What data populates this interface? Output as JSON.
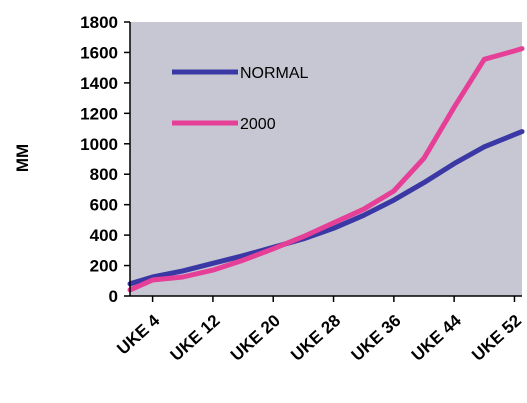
{
  "chart_data": {
    "type": "line",
    "title": "",
    "xlabel": "",
    "ylabel": "MM",
    "ylim": [
      0,
      1800
    ],
    "yticks": [
      0,
      200,
      400,
      600,
      800,
      1000,
      1200,
      1400,
      1600,
      1800
    ],
    "x_tick_labels": [
      "UKE 4",
      "UKE 12",
      "UKE 20",
      "UKE 28",
      "UKE 36",
      "UKE 44",
      "UKE 52"
    ],
    "x": [
      1,
      4,
      8,
      12,
      16,
      20,
      24,
      28,
      32,
      36,
      40,
      44,
      48,
      52,
      53
    ],
    "xlim": [
      1,
      53
    ],
    "grid": false,
    "legend_position": "upper-left inside plot",
    "plot_background": "#c7c7d3",
    "series": [
      {
        "name": "NORMAL",
        "color": "#3a38a4",
        "values": [
          80,
          125,
          165,
          215,
          265,
          320,
          375,
          445,
          530,
          630,
          745,
          870,
          980,
          1060,
          1080
        ]
      },
      {
        "name": "2000",
        "color": "#e63f97",
        "values": [
          40,
          105,
          125,
          170,
          235,
          310,
          390,
          480,
          570,
          690,
          905,
          1240,
          1555,
          1610,
          1625
        ]
      }
    ]
  }
}
